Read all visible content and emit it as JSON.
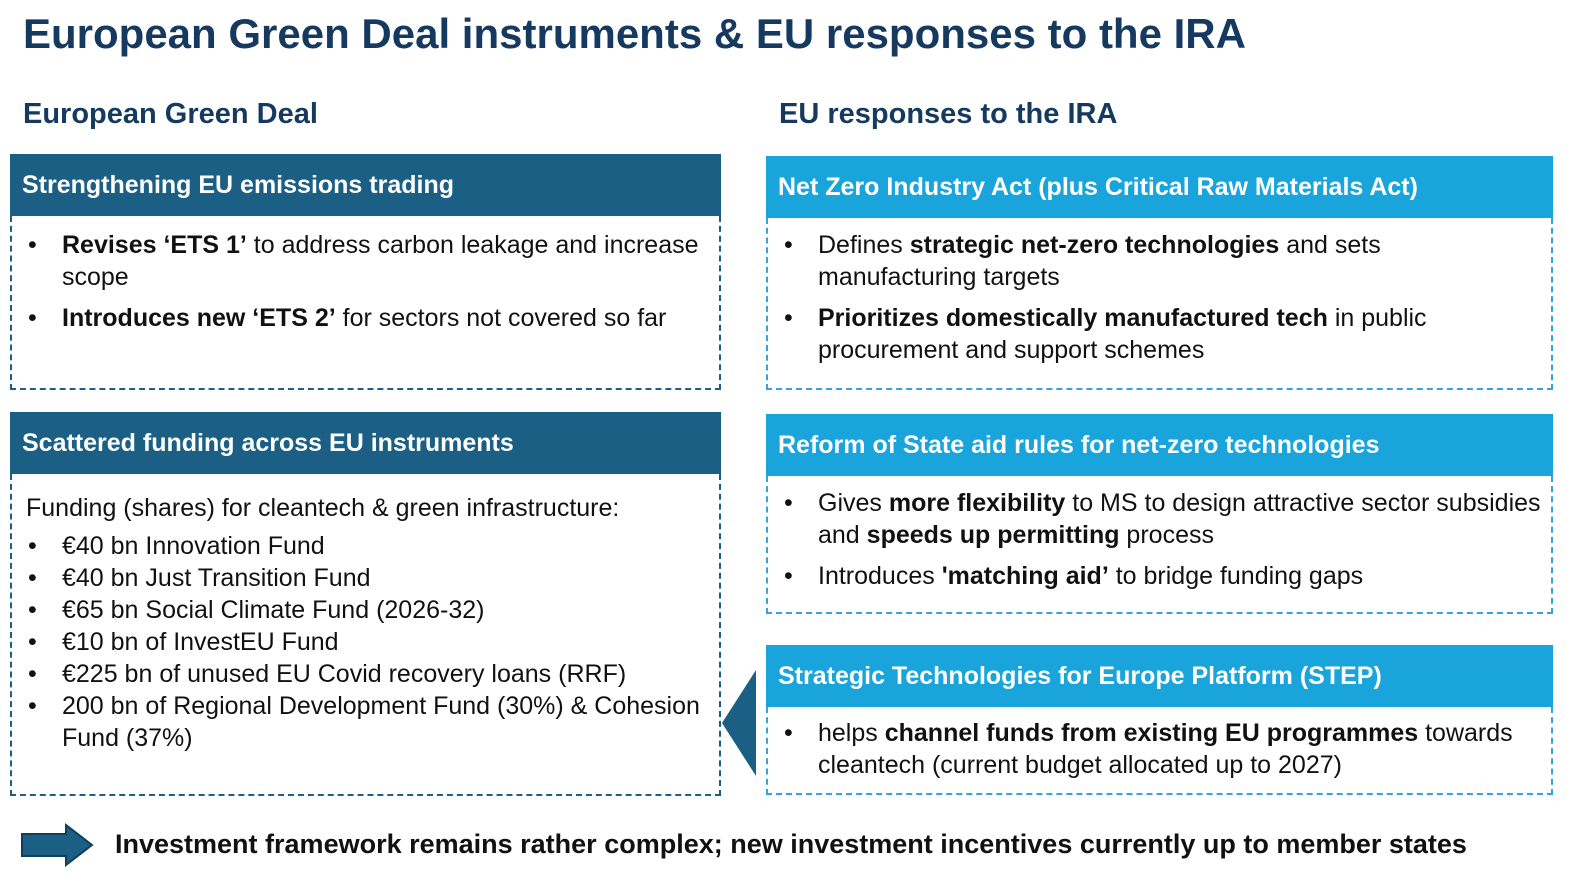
{
  "title": "European Green Deal instruments & EU responses to the IRA",
  "left_heading": "European Green Deal",
  "right_heading": "EU responses to the IRA",
  "ets_box": {
    "header": "Strengthening EU emissions trading",
    "b1_bold": "Revises  ‘ETS 1’",
    "b1_rest": " to address carbon leakage and increase scope",
    "b2_bold": "Introduces new ‘ETS 2’",
    "b2_rest": " for sectors not covered so far"
  },
  "funding_box": {
    "header": "Scattered funding across EU instruments",
    "intro": "Funding (shares) for cleantech & green infrastructure:",
    "items": [
      "€40 bn Innovation Fund",
      "€40 bn Just Transition Fund",
      "€65 bn Social Climate Fund (2026-32)",
      "€10 bn of InvestEU Fund",
      "€225 bn of unused EU Covid recovery loans (RRF)",
      "200 bn of Regional Development Fund (30%) & Cohesion Fund (37%)"
    ]
  },
  "nzia_box": {
    "header": "Net Zero Industry Act  (plus Critical Raw Materials Act)",
    "b1_pre": "Defines ",
    "b1_bold": "strategic net-zero technologies",
    "b1_post": " and sets manufacturing targets",
    "b2_bold": "Prioritizes domestically manufactured tech",
    "b2_post": " in public procurement and support schemes"
  },
  "state_aid_box": {
    "header": "Reform of State aid rules for net-zero technologies",
    "b1_pre": "Gives ",
    "b1_bold1": "more flexibility",
    "b1_mid": " to MS to design attractive sector subsidies and ",
    "b1_bold2": "speeds up permitting",
    "b1_post": " process",
    "b2_pre": "Introduces ",
    "b2_bold": "'matching aid’",
    "b2_post": " to bridge funding gaps"
  },
  "step_box": {
    "header": "Strategic Technologies for Europe Platform (STEP)",
    "b1_pre": "helps ",
    "b1_bold": "channel funds from existing EU programmes",
    "b1_post": " towards cleantech (current budget allocated up to 2027)"
  },
  "conclusion": "Investment framework remains rather complex; new investment incentives currently up to member states",
  "colors": {
    "title": "#163a5f",
    "dark_header": "#1b5f85",
    "light_header": "#19a5dc"
  },
  "icons": {
    "left_pointer": "triangle-left-icon",
    "conclusion_arrow": "right-arrow-icon"
  }
}
